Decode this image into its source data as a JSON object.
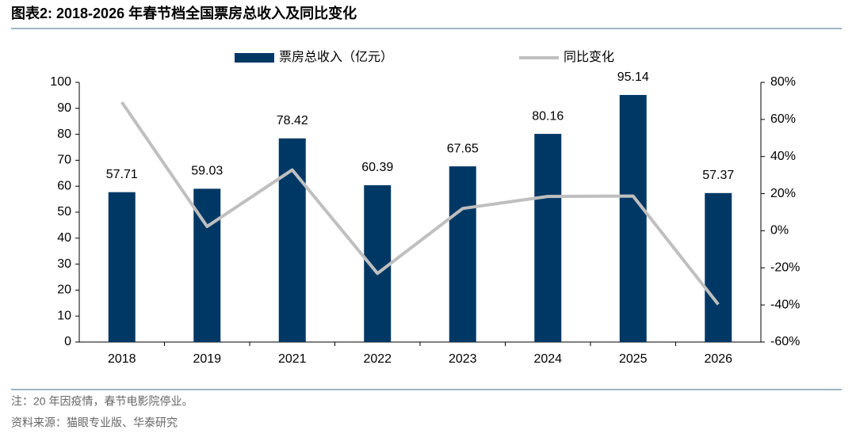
{
  "chart_data": {
    "type": "combo",
    "title": "图表2:  2018-2026 年春节档全国票房总收入及同比变化",
    "categories": [
      "2018",
      "2019",
      "2021",
      "2022",
      "2023",
      "2024",
      "2025",
      "2026"
    ],
    "series": [
      {
        "name": "票房总收入（亿元）",
        "type": "bar",
        "color": "#003865",
        "values": [
          57.71,
          59.03,
          78.42,
          60.39,
          67.65,
          80.16,
          95.14,
          57.37
        ]
      },
      {
        "name": "同比变化",
        "type": "line",
        "axis": "y2",
        "color": "#bfbfbf",
        "values": [
          69.3,
          2.3,
          32.8,
          -23,
          12,
          18.5,
          18.7,
          -39.7
        ]
      }
    ],
    "ylim": [
      0,
      100
    ],
    "yticks": [
      0,
      10,
      20,
      30,
      40,
      50,
      60,
      70,
      80,
      90,
      100
    ],
    "y2lim": [
      -60,
      80
    ],
    "y2ticks": [
      {
        "value": -60,
        "label": "-60%"
      },
      {
        "value": -40,
        "label": "-40%"
      },
      {
        "value": -20,
        "label": "-20%"
      },
      {
        "value": 0,
        "label": "0%"
      },
      {
        "value": 20,
        "label": "20%"
      },
      {
        "value": 40,
        "label": "40%"
      },
      {
        "value": 60,
        "label": "60%"
      },
      {
        "value": 80,
        "label": "80%"
      }
    ],
    "legend": "top",
    "value_labels_shown": true
  },
  "footer": {
    "note": "注：20 年因疫情，春节电影院停业。",
    "source": "资料来源：猫眼专业版、华泰研究"
  }
}
